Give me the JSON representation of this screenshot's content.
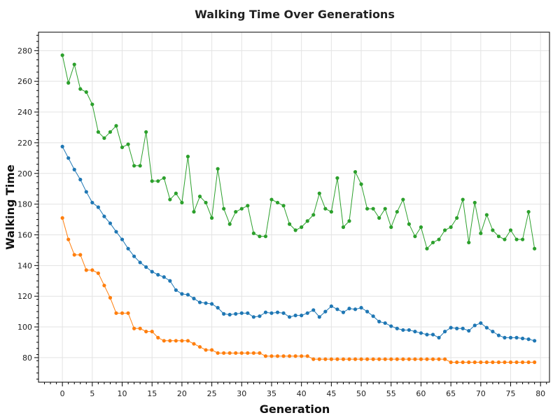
{
  "chart_data": {
    "type": "line",
    "title": "Walking Time Over Generations",
    "xlabel": "Generation",
    "ylabel": "Walking Time",
    "xlim": [
      -4,
      81.5
    ],
    "ylim": [
      64,
      292
    ],
    "xticks": [
      0,
      5,
      10,
      15,
      20,
      25,
      30,
      35,
      40,
      45,
      50,
      55,
      60,
      65,
      70,
      75,
      80
    ],
    "yticks": [
      80,
      100,
      120,
      140,
      160,
      180,
      200,
      220,
      240,
      260,
      280
    ],
    "grid": true,
    "legend": "none",
    "series": [
      {
        "color": "#2ca02c",
        "values": [
          277,
          259,
          271,
          255,
          253,
          245,
          227,
          223,
          227,
          231,
          217,
          219,
          205,
          205,
          227,
          195,
          195,
          197,
          183,
          187,
          181,
          211,
          175,
          185,
          181,
          171,
          203,
          177,
          167,
          175,
          177,
          179,
          161,
          159,
          159,
          183,
          181,
          179,
          167,
          163,
          165,
          169,
          173,
          187,
          177,
          175,
          197,
          165,
          169,
          201,
          193,
          177,
          177,
          171,
          177,
          165,
          175,
          183,
          167,
          159,
          165,
          151,
          155,
          157,
          163,
          165,
          171,
          183,
          155,
          181,
          161,
          173,
          163,
          159,
          157,
          163,
          157,
          157,
          175,
          151
        ]
      },
      {
        "color": "#1f77b4",
        "values": [
          217.5,
          210,
          202.5,
          196,
          188,
          181,
          178,
          172,
          167.5,
          162,
          157,
          151,
          146,
          142,
          139,
          136,
          134,
          132.5,
          130,
          124,
          121.5,
          121,
          118.5,
          116,
          115.5,
          115,
          112.5,
          108.5,
          108,
          108.5,
          109,
          109,
          106.5,
          107,
          109.5,
          109,
          109.5,
          109,
          106.5,
          107.5,
          107.5,
          109,
          111,
          106.5,
          110,
          113.5,
          111.5,
          109.5,
          112,
          111.5,
          112.5,
          110,
          107,
          103.5,
          102.5,
          100.5,
          99,
          98,
          98,
          97,
          96,
          95,
          95,
          93,
          97,
          99.5,
          99,
          99,
          97.5,
          101,
          102.5,
          99.5,
          97,
          94.5,
          93,
          93,
          93,
          92.5,
          92,
          91
        ]
      },
      {
        "color": "#ff7f0e",
        "values": [
          171,
          157,
          147,
          147,
          137,
          137,
          135,
          127,
          119,
          109,
          109,
          109,
          99,
          99,
          97,
          97,
          93,
          91,
          91,
          91,
          91,
          91,
          89,
          87,
          85,
          85,
          83,
          83,
          83,
          83,
          83,
          83,
          83,
          83,
          81,
          81,
          81,
          81,
          81,
          81,
          81,
          81,
          79,
          79,
          79,
          79,
          79,
          79,
          79,
          79,
          79,
          79,
          79,
          79,
          79,
          79,
          79,
          79,
          79,
          79,
          79,
          79,
          79,
          79,
          79,
          77,
          77,
          77,
          77,
          77,
          77,
          77,
          77,
          77,
          77,
          77,
          77,
          77,
          77,
          77
        ]
      }
    ]
  }
}
